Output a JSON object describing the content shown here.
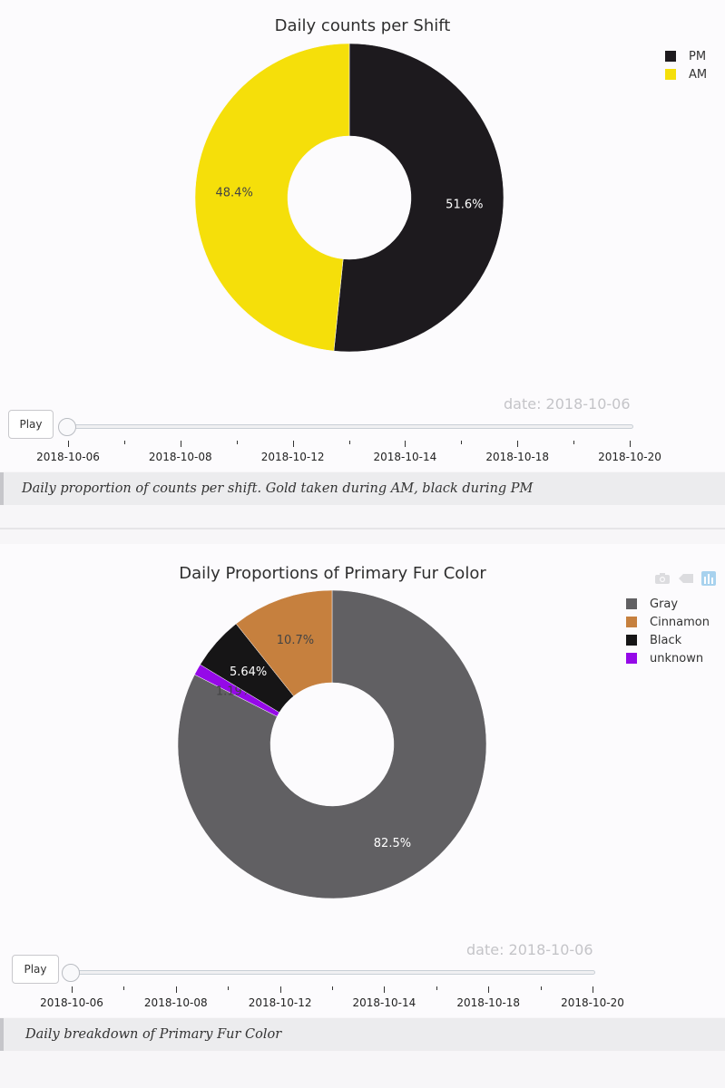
{
  "charts": [
    {
      "title": "Daily counts per Shift",
      "date_label": "date: 2018-10-06",
      "play_label": "Play",
      "caption": "Daily proportion of counts per shift. Gold taken during AM, black during PM",
      "ticks": [
        "2018-10-06",
        "2018-10-08",
        "2018-10-12",
        "2018-10-14",
        "2018-10-18",
        "2018-10-20"
      ],
      "legend": [
        {
          "label": "PM",
          "color": "#1d1a1e"
        },
        {
          "label": "AM",
          "color": "#f5df0a"
        }
      ]
    },
    {
      "title": "Daily Proportions of Primary Fur Color",
      "date_label": "date: 2018-10-06",
      "play_label": "Play",
      "caption": "Daily breakdown of Primary Fur Color",
      "ticks": [
        "2018-10-06",
        "2018-10-08",
        "2018-10-12",
        "2018-10-14",
        "2018-10-18",
        "2018-10-20"
      ],
      "legend": [
        {
          "label": "Gray",
          "color": "#616063"
        },
        {
          "label": "Cinnamon",
          "color": "#c6803e"
        },
        {
          "label": "Black",
          "color": "#161516"
        },
        {
          "label": "unknown",
          "color": "#9509e8"
        }
      ]
    }
  ],
  "chart_data": [
    {
      "type": "pie",
      "hole": true,
      "title": "Daily counts per Shift",
      "slider_value": "2018-10-06",
      "slices": [
        {
          "label": "PM",
          "value": 51.6,
          "text": "51.6%",
          "color": "#1d1a1e",
          "text_color": "#ffffff"
        },
        {
          "label": "AM",
          "value": 48.4,
          "text": "48.4%",
          "color": "#f5df0a",
          "text_color": "#444444"
        }
      ]
    },
    {
      "type": "pie",
      "hole": true,
      "title": "Daily Proportions of Primary Fur Color",
      "slider_value": "2018-10-06",
      "slices": [
        {
          "label": "Gray",
          "value": 82.5,
          "text": "82.5%",
          "color": "#616063",
          "text_color": "#ffffff"
        },
        {
          "label": "unknown",
          "value": 1.19,
          "text": "1.19%",
          "color": "#9509e8",
          "text_color": "#444444"
        },
        {
          "label": "Black",
          "value": 5.64,
          "text": "5.64%",
          "color": "#161516",
          "text_color": "#ffffff"
        },
        {
          "label": "Cinnamon",
          "value": 10.7,
          "text": "10.7%",
          "color": "#c6803e",
          "text_color": "#444444"
        }
      ]
    }
  ]
}
